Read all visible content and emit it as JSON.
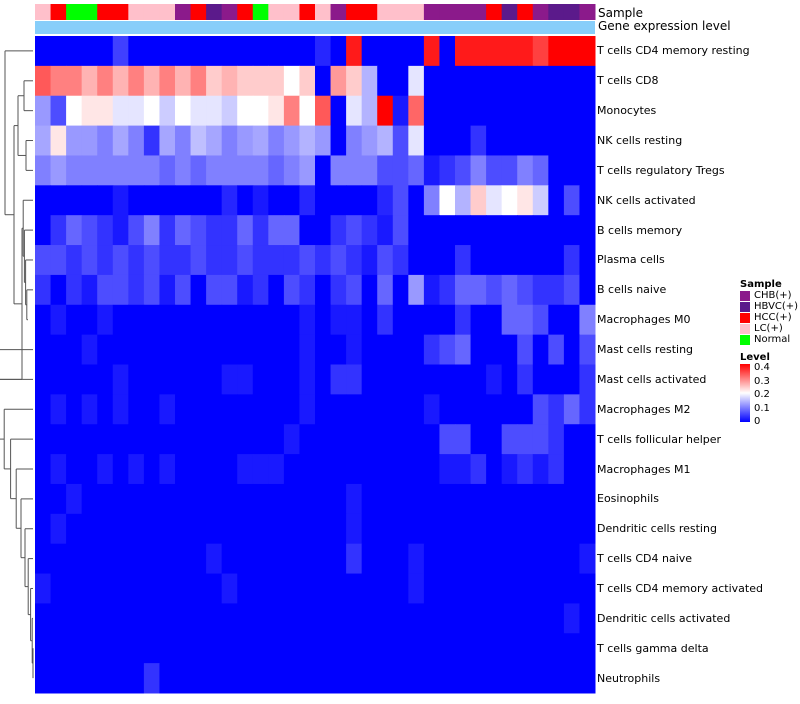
{
  "chart_data": {
    "type": "heatmap",
    "title": "",
    "annotation_tracks": [
      "Sample",
      "Gene expression level"
    ],
    "rows": [
      "T cells CD4 memory resting",
      "T cells CD8",
      "Monocytes",
      "NK cells resting",
      "T cells regulatory  Tregs",
      "NK cells activated",
      "B cells memory",
      "Plasma cells",
      "B cells naive",
      "Macrophages M0",
      "Mast cells resting",
      "Mast cells activated",
      "Macrophages M2",
      "T cells follicular helper",
      "Macrophages M1",
      "Eosinophils",
      "Dendritic cells resting",
      "T cells CD4 naive",
      "T cells CD4 memory activated",
      "Dendritic cells activated",
      "T cells gamma delta",
      "Neutrophils"
    ],
    "sample_groups": [
      "LC(+)",
      "HCC(+)",
      "Normal",
      "Normal",
      "HCC(+)",
      "HCC(+)",
      "LC(+)",
      "LC(+)",
      "LC(+)",
      "CHB(+)",
      "HCC(+)",
      "HBVC(+)",
      "CHB(+)",
      "HCC(+)",
      "Normal",
      "LC(+)",
      "LC(+)",
      "HCC(+)",
      "LC(+)",
      "CHB(+)",
      "HCC(+)",
      "HCC(+)",
      "LC(+)",
      "LC(+)",
      "LC(+)",
      "CHB(+)",
      "CHB(+)",
      "CHB(+)",
      "CHB(+)",
      "HCC(+)",
      "HBVC(+)",
      "HCC(+)",
      "CHB(+)",
      "HBVC(+)",
      "HBVC(+)",
      "CHB(+)"
    ],
    "values": [
      [
        0.0,
        0.0,
        0.0,
        0.0,
        0.0,
        0.05,
        0.0,
        0.0,
        0.0,
        0.0,
        0.0,
        0.0,
        0.0,
        0.0,
        0.0,
        0.0,
        0.0,
        0.0,
        0.03,
        0.0,
        0.38,
        0.0,
        0.0,
        0.0,
        0.0,
        0.38,
        0.0,
        0.38,
        0.38,
        0.38,
        0.38,
        0.38,
        0.35,
        0.4,
        0.4,
        0.4
      ],
      [
        0.33,
        0.3,
        0.3,
        0.26,
        0.3,
        0.26,
        0.3,
        0.26,
        0.3,
        0.26,
        0.3,
        0.24,
        0.26,
        0.24,
        0.24,
        0.24,
        0.2,
        0.24,
        0.0,
        0.28,
        0.24,
        0.14,
        0.0,
        0.0,
        0.18,
        0.0,
        0.0,
        0.0,
        0.0,
        0.0,
        0.0,
        0.0,
        0.0,
        0.0,
        0.0,
        0.0
      ],
      [
        0.12,
        0.06,
        0.2,
        0.22,
        0.22,
        0.18,
        0.18,
        0.2,
        0.16,
        0.2,
        0.18,
        0.18,
        0.16,
        0.2,
        0.2,
        0.22,
        0.3,
        0.2,
        0.33,
        0.0,
        0.18,
        0.14,
        0.4,
        0.02,
        0.32,
        0.0,
        0.0,
        0.0,
        0.0,
        0.0,
        0.0,
        0.0,
        0.0,
        0.0,
        0.0,
        0.0
      ],
      [
        0.13,
        0.22,
        0.12,
        0.12,
        0.1,
        0.13,
        0.1,
        0.04,
        0.13,
        0.1,
        0.15,
        0.13,
        0.1,
        0.12,
        0.13,
        0.1,
        0.12,
        0.14,
        0.12,
        0.0,
        0.1,
        0.12,
        0.14,
        0.06,
        0.18,
        0.0,
        0.0,
        0.0,
        0.04,
        0.0,
        0.0,
        0.0,
        0.0,
        0.0,
        0.0,
        0.0
      ],
      [
        0.1,
        0.12,
        0.1,
        0.1,
        0.1,
        0.1,
        0.1,
        0.1,
        0.08,
        0.1,
        0.08,
        0.1,
        0.1,
        0.1,
        0.1,
        0.08,
        0.1,
        0.12,
        0.0,
        0.1,
        0.1,
        0.1,
        0.06,
        0.06,
        0.08,
        0.02,
        0.04,
        0.06,
        0.1,
        0.06,
        0.06,
        0.1,
        0.08,
        0.0,
        0.0,
        0.0
      ],
      [
        0.0,
        0.0,
        0.0,
        0.0,
        0.0,
        0.02,
        0.0,
        0.0,
        0.0,
        0.0,
        0.0,
        0.0,
        0.03,
        0.0,
        0.02,
        0.0,
        0.0,
        0.03,
        0.0,
        0.0,
        0.0,
        0.0,
        0.03,
        0.06,
        0.0,
        0.1,
        0.2,
        0.14,
        0.24,
        0.18,
        0.2,
        0.22,
        0.16,
        0.0,
        0.06,
        0.0
      ],
      [
        0.0,
        0.04,
        0.08,
        0.06,
        0.04,
        0.02,
        0.06,
        0.1,
        0.04,
        0.08,
        0.06,
        0.04,
        0.04,
        0.08,
        0.04,
        0.08,
        0.08,
        0.0,
        0.0,
        0.04,
        0.06,
        0.04,
        0.02,
        0.06,
        0.0,
        0.0,
        0.0,
        0.0,
        0.0,
        0.0,
        0.0,
        0.0,
        0.0,
        0.0,
        0.0,
        0.0
      ],
      [
        0.06,
        0.06,
        0.04,
        0.06,
        0.04,
        0.06,
        0.04,
        0.06,
        0.04,
        0.04,
        0.06,
        0.04,
        0.04,
        0.06,
        0.04,
        0.04,
        0.04,
        0.06,
        0.04,
        0.06,
        0.04,
        0.02,
        0.06,
        0.04,
        0.0,
        0.0,
        0.0,
        0.04,
        0.0,
        0.0,
        0.0,
        0.0,
        0.0,
        0.0,
        0.04,
        0.0
      ],
      [
        0.04,
        0.0,
        0.04,
        0.02,
        0.06,
        0.06,
        0.04,
        0.06,
        0.02,
        0.06,
        0.0,
        0.06,
        0.06,
        0.02,
        0.04,
        0.0,
        0.06,
        0.04,
        0.0,
        0.04,
        0.06,
        0.0,
        0.08,
        0.0,
        0.12,
        0.02,
        0.04,
        0.08,
        0.08,
        0.06,
        0.08,
        0.06,
        0.04,
        0.04,
        0.06,
        0.0
      ],
      [
        0.0,
        0.02,
        0.0,
        0.0,
        0.02,
        0.0,
        0.0,
        0.0,
        0.0,
        0.0,
        0.0,
        0.0,
        0.0,
        0.0,
        0.0,
        0.0,
        0.0,
        0.02,
        0.0,
        0.02,
        0.02,
        0.0,
        0.04,
        0.0,
        0.0,
        0.0,
        0.0,
        0.04,
        0.0,
        0.0,
        0.08,
        0.08,
        0.06,
        0.0,
        0.0,
        0.1
      ],
      [
        0.0,
        0.0,
        0.0,
        0.02,
        0.0,
        0.0,
        0.0,
        0.0,
        0.0,
        0.0,
        0.0,
        0.0,
        0.0,
        0.0,
        0.0,
        0.0,
        0.0,
        0.02,
        0.0,
        0.0,
        0.02,
        0.0,
        0.0,
        0.0,
        0.0,
        0.04,
        0.06,
        0.08,
        0.0,
        0.0,
        0.0,
        0.06,
        0.0,
        0.06,
        0.0,
        0.06
      ],
      [
        0.0,
        0.0,
        0.0,
        0.0,
        0.0,
        0.02,
        0.0,
        0.0,
        0.0,
        0.0,
        0.0,
        0.0,
        0.02,
        0.02,
        0.0,
        0.0,
        0.0,
        0.02,
        0.0,
        0.04,
        0.04,
        0.0,
        0.0,
        0.0,
        0.0,
        0.0,
        0.0,
        0.0,
        0.0,
        0.02,
        0.0,
        0.04,
        0.0,
        0.0,
        0.0,
        0.04
      ],
      [
        0.0,
        0.02,
        0.0,
        0.02,
        0.0,
        0.02,
        0.0,
        0.0,
        0.02,
        0.0,
        0.0,
        0.0,
        0.0,
        0.0,
        0.0,
        0.0,
        0.0,
        0.02,
        0.0,
        0.0,
        0.0,
        0.0,
        0.0,
        0.0,
        0.0,
        0.02,
        0.0,
        0.0,
        0.0,
        0.0,
        0.0,
        0.0,
        0.06,
        0.04,
        0.08,
        0.04
      ],
      [
        0.0,
        0.0,
        0.0,
        0.0,
        0.0,
        0.0,
        0.0,
        0.0,
        0.0,
        0.0,
        0.0,
        0.0,
        0.0,
        0.0,
        0.0,
        0.0,
        0.02,
        0.0,
        0.0,
        0.0,
        0.0,
        0.0,
        0.0,
        0.0,
        0.0,
        0.0,
        0.06,
        0.06,
        0.0,
        0.0,
        0.06,
        0.06,
        0.06,
        0.04,
        0.0,
        0.0
      ],
      [
        0.0,
        0.02,
        0.0,
        0.0,
        0.02,
        0.0,
        0.02,
        0.0,
        0.02,
        0.0,
        0.0,
        0.0,
        0.0,
        0.02,
        0.02,
        0.02,
        0.0,
        0.0,
        0.0,
        0.0,
        0.0,
        0.0,
        0.0,
        0.0,
        0.0,
        0.0,
        0.02,
        0.02,
        0.04,
        0.0,
        0.02,
        0.04,
        0.02,
        0.04,
        0.0,
        0.0
      ],
      [
        0.0,
        0.0,
        0.02,
        0.0,
        0.0,
        0.0,
        0.0,
        0.0,
        0.0,
        0.0,
        0.0,
        0.0,
        0.0,
        0.0,
        0.0,
        0.0,
        0.0,
        0.0,
        0.0,
        0.0,
        0.02,
        0.0,
        0.0,
        0.0,
        0.0,
        0.0,
        0.0,
        0.0,
        0.0,
        0.0,
        0.0,
        0.0,
        0.0,
        0.0,
        0.0,
        0.0
      ],
      [
        0.0,
        0.02,
        0.0,
        0.0,
        0.0,
        0.0,
        0.0,
        0.0,
        0.0,
        0.0,
        0.0,
        0.0,
        0.0,
        0.0,
        0.0,
        0.0,
        0.0,
        0.0,
        0.0,
        0.0,
        0.02,
        0.0,
        0.0,
        0.0,
        0.0,
        0.0,
        0.0,
        0.0,
        0.0,
        0.0,
        0.0,
        0.0,
        0.0,
        0.0,
        0.0,
        0.0
      ],
      [
        0.0,
        0.0,
        0.0,
        0.0,
        0.0,
        0.0,
        0.0,
        0.0,
        0.0,
        0.0,
        0.0,
        0.02,
        0.0,
        0.0,
        0.0,
        0.0,
        0.0,
        0.0,
        0.0,
        0.0,
        0.04,
        0.0,
        0.0,
        0.0,
        0.02,
        0.0,
        0.0,
        0.0,
        0.0,
        0.0,
        0.0,
        0.0,
        0.0,
        0.0,
        0.0,
        0.02
      ],
      [
        0.02,
        0.0,
        0.0,
        0.0,
        0.0,
        0.0,
        0.0,
        0.0,
        0.0,
        0.0,
        0.0,
        0.0,
        0.02,
        0.0,
        0.0,
        0.0,
        0.0,
        0.0,
        0.0,
        0.0,
        0.0,
        0.0,
        0.0,
        0.0,
        0.02,
        0.0,
        0.0,
        0.0,
        0.0,
        0.0,
        0.0,
        0.0,
        0.0,
        0.0,
        0.0,
        0.0
      ],
      [
        0.0,
        0.0,
        0.0,
        0.0,
        0.0,
        0.0,
        0.0,
        0.0,
        0.0,
        0.0,
        0.0,
        0.0,
        0.0,
        0.0,
        0.0,
        0.0,
        0.0,
        0.0,
        0.0,
        0.0,
        0.0,
        0.0,
        0.0,
        0.0,
        0.0,
        0.0,
        0.0,
        0.0,
        0.0,
        0.0,
        0.0,
        0.0,
        0.0,
        0.0,
        0.02,
        0.0
      ],
      [
        0.0,
        0.0,
        0.0,
        0.0,
        0.0,
        0.0,
        0.0,
        0.0,
        0.0,
        0.0,
        0.0,
        0.0,
        0.0,
        0.0,
        0.0,
        0.0,
        0.0,
        0.0,
        0.0,
        0.0,
        0.0,
        0.0,
        0.0,
        0.0,
        0.0,
        0.0,
        0.0,
        0.0,
        0.0,
        0.0,
        0.0,
        0.0,
        0.0,
        0.0,
        0.0,
        0.0
      ],
      [
        0.0,
        0.0,
        0.0,
        0.0,
        0.0,
        0.0,
        0.0,
        0.04,
        0.0,
        0.0,
        0.0,
        0.0,
        0.0,
        0.0,
        0.0,
        0.0,
        0.0,
        0.0,
        0.0,
        0.0,
        0.0,
        0.0,
        0.0,
        0.0,
        0.0,
        0.0,
        0.0,
        0.0,
        0.0,
        0.0,
        0.0,
        0.0,
        0.0,
        0.0,
        0.0,
        0.0
      ]
    ],
    "legend_sample": {
      "title": "Sample",
      "items": [
        {
          "label": "CHB(+)",
          "color": "#8B1A8B"
        },
        {
          "label": "HBVC(+)",
          "color": "#5B1A8B"
        },
        {
          "label": "HCC(+)",
          "color": "#FF0000"
        },
        {
          "label": "LC(+)",
          "color": "#FFC0CB"
        },
        {
          "label": "Normal",
          "color": "#00FF00"
        }
      ]
    },
    "legend_level": {
      "title": "Level",
      "ticks": [
        "0.4",
        "0.3",
        "0.2",
        "0.1",
        "0"
      ],
      "range": [
        0,
        0.4
      ],
      "colors": [
        "#0000FF",
        "#FFFFFF",
        "#FF0000"
      ]
    },
    "gene_expression_color": "#87CEFA"
  }
}
